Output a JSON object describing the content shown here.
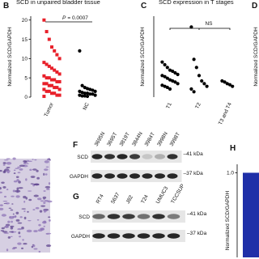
{
  "chart_data": [
    {
      "panel": "B",
      "type": "strip",
      "title": "SCD in unpaired bladder tissue",
      "y_label": "Normalized SCD/GAPDH",
      "annotation_p": "P",
      "annotation": "= 0.0007",
      "ylim": [
        0,
        21
      ],
      "yticks": [
        0,
        5,
        10,
        15,
        20
      ],
      "groups": [
        {
          "name": "Tumor",
          "color": "#e8202a",
          "marker": "square",
          "values": [
            20,
            17,
            15,
            13,
            12,
            11,
            10,
            9,
            8.5,
            8,
            7.5,
            7,
            6.5,
            6,
            5.5,
            5,
            5,
            4.5,
            4.5,
            4,
            4,
            3.5,
            3.5,
            3,
            3,
            2.5,
            2.5,
            2,
            2,
            1.5,
            1.5,
            1,
            1,
            0.5,
            0.5,
            0.2
          ]
        },
        {
          "name": "NC",
          "color": "#000000",
          "marker": "circle",
          "values": [
            12,
            3,
            2.5,
            2.2,
            2,
            1.8,
            1.5,
            1.5,
            1.2,
            1,
            1,
            0.8,
            0.8,
            0.5,
            0.5,
            0.3,
            0.3,
            0.2
          ]
        }
      ]
    },
    {
      "panel": "C",
      "type": "strip",
      "title": "SCD expression in T stages",
      "y_label": "Normalized SCD/GAPDH",
      "annotation": "NS",
      "ylim": [
        0,
        15
      ],
      "groups": [
        {
          "name": "T1",
          "color": "#000000",
          "marker": "circle",
          "values": [
            6.5,
            6,
            5.5,
            5,
            4.8,
            4.5,
            4.2,
            4,
            3.8,
            3.5,
            3.2,
            3,
            2.8,
            2.5,
            2.2,
            2,
            1.8,
            1.5
          ]
        },
        {
          "name": "T2",
          "color": "#000000",
          "marker": "circle",
          "values": [
            13,
            7,
            5.5,
            4,
            3,
            2.5,
            2,
            1.5,
            1
          ]
        },
        {
          "name": "T3 and T4",
          "color": "#000000",
          "marker": "circle",
          "values": [
            3,
            2.8,
            2.5,
            2.3,
            2
          ]
        }
      ]
    },
    {
      "panel": "H",
      "type": "bar",
      "y_label": "Normalized SCD/GAPDH",
      "ylim": [
        0,
        1.1
      ],
      "yticks": [
        {
          "value": 1,
          "label": "1.0"
        }
      ],
      "values": [
        1
      ],
      "color": "#1f2fa8"
    }
  ],
  "panel_d": {
    "label": "D",
    "y_label": "Normalized SCD/GAPDH"
  },
  "blots": [
    {
      "panel": "F",
      "lanes": [
        "3695N",
        "3695T",
        "3819T",
        "3844N",
        "3984T",
        "3998N",
        "3998T"
      ],
      "rows": [
        "SCD",
        "GAPDH"
      ],
      "markers": [
        "–41 kDa",
        "–37 kDa"
      ]
    },
    {
      "panel": "G",
      "lanes": [
        "RT4",
        "5637",
        "J82",
        "T24",
        "UMUC3",
        "TCCSUP"
      ],
      "rows": [
        "SCD",
        "GAPDH"
      ],
      "markers": [
        "–41 kDa",
        "–37 kDa"
      ]
    }
  ]
}
